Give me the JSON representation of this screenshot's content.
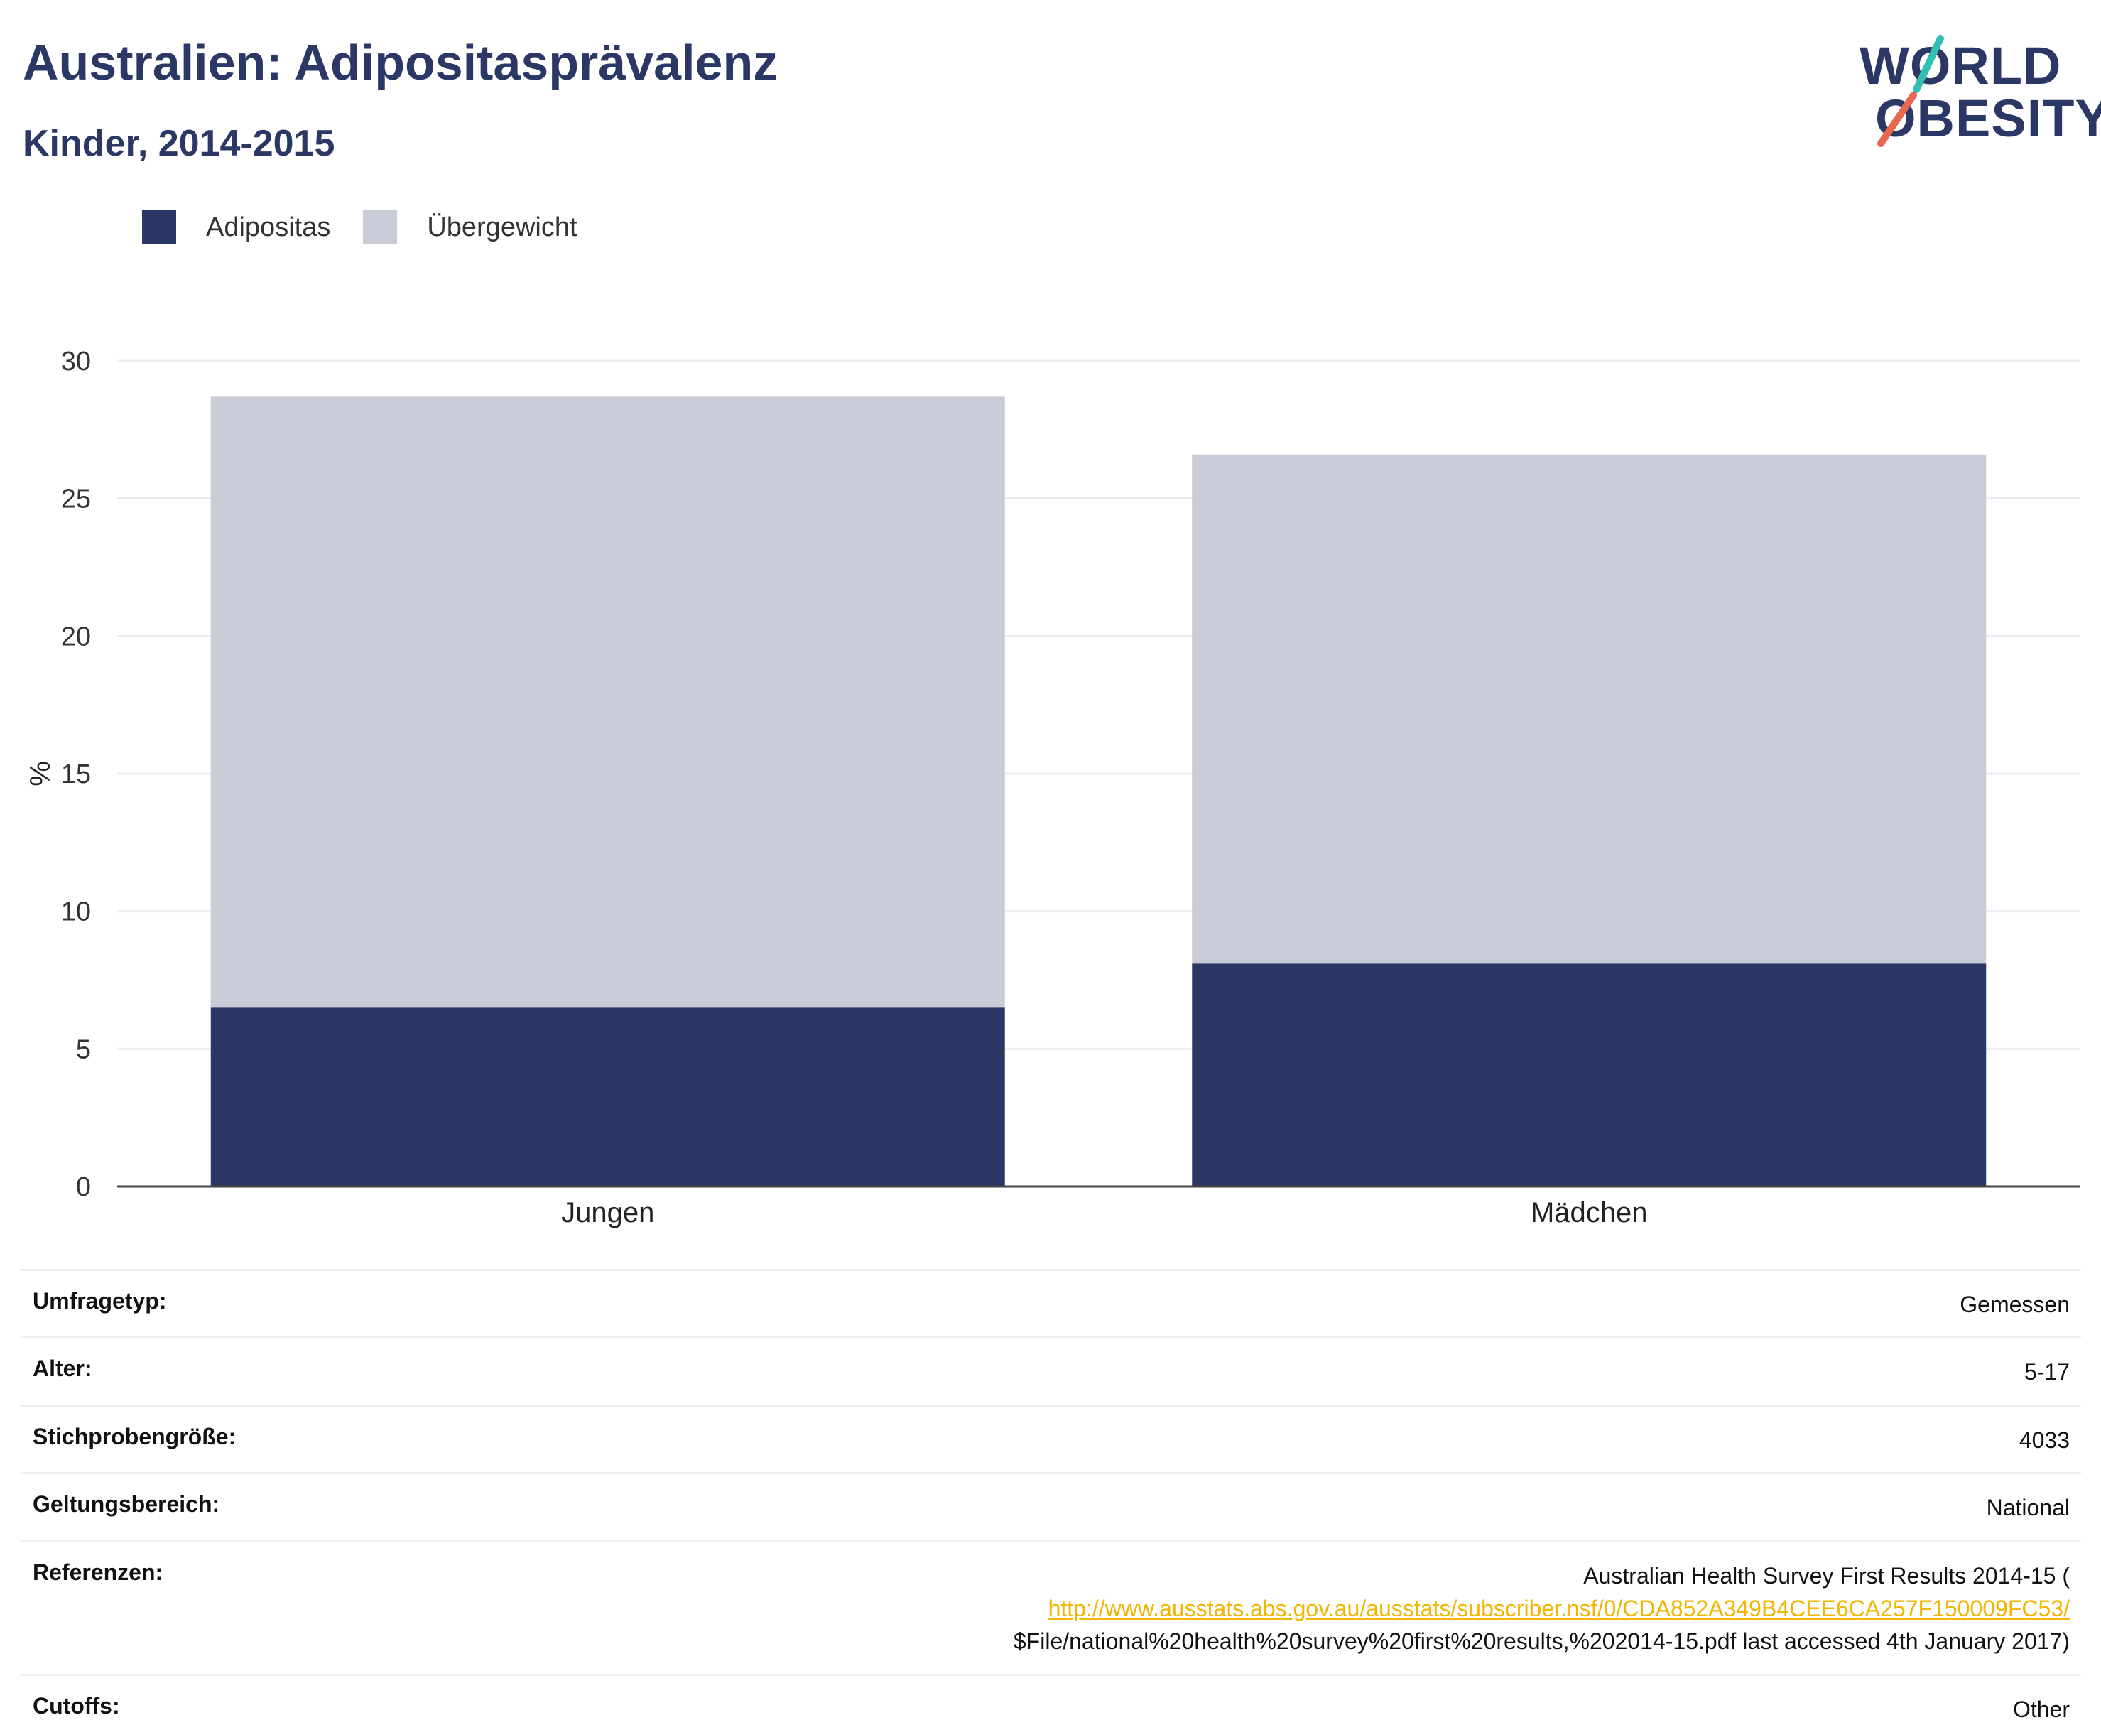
{
  "title": "Australien: Adipositasprävalenz",
  "subtitle": "Kinder, 2014-2015",
  "logo": {
    "line1": "WORLD",
    "line2": "OBESITY",
    "accent_colors": [
      "#2fbfb3",
      "#e8674f"
    ]
  },
  "legend": [
    {
      "label": "Adipositas",
      "color": "#2b3765"
    },
    {
      "label": "Übergewicht",
      "color": "#c9cbd7"
    }
  ],
  "chart_data": {
    "type": "bar",
    "stacked": true,
    "categories": [
      "Jungen",
      "Mädchen"
    ],
    "series": [
      {
        "name": "Adipositas",
        "values": [
          6.5,
          8.1
        ],
        "color": "#2b3765"
      },
      {
        "name": "Übergewicht",
        "values": [
          22.2,
          18.5
        ],
        "color": "#c9cbd7"
      }
    ],
    "ylabel": "%",
    "ylim": [
      0,
      30
    ],
    "yticks": [
      0,
      5,
      10,
      15,
      20,
      25,
      30
    ],
    "grid": true,
    "legend_position": "top-left"
  },
  "info": [
    {
      "key": "Umfragetyp:",
      "value": "Gemessen"
    },
    {
      "key": "Alter:",
      "value": "5-17"
    },
    {
      "key": "Stichprobengröße:",
      "value": "4033"
    },
    {
      "key": "Geltungsbereich:",
      "value": "National"
    },
    {
      "key": "Referenzen:",
      "value_before": "Australian Health Survey First Results 2014-15 (",
      "link": "http://www.ausstats.abs.gov.au/ausstats/subscriber.nsf/0/CDA852A349B4CEE6CA257F150009FC53/",
      "value_after": "$File/national%20health%20survey%20first%20results,%202014-15.pdf last accessed 4th January 2017)"
    },
    {
      "key": "Cutoffs:",
      "value": "Other"
    }
  ]
}
